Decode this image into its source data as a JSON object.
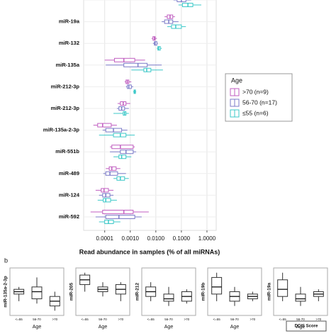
{
  "chart_data": [
    {
      "type": "hbox",
      "x_label": "Read abundance in samples (% of all miRNAs)",
      "categories": [
        null,
        "miR-19a",
        "miR-132",
        "miR-135a",
        "miR-212-3p",
        "miR-212-3p",
        "miR-135a-2-3p",
        "miR-551b",
        "miR-489",
        "miR-124",
        "miR-592"
      ],
      "log_x": true,
      "grid": true,
      "xlim": [
        1.5e-05,
        2.3
      ],
      "xticks": [
        {
          "value": 0.0001,
          "label": "0.0001"
        },
        {
          "value": 0.001,
          "label": "0.0010"
        },
        {
          "value": 0.01,
          "label": "0.0100"
        },
        {
          "value": 0.1,
          "label": "0.1000"
        },
        {
          "value": 1,
          "label": "1.0000"
        }
      ],
      "legend_title": "Age",
      "legend": "right",
      "series": [
        {
          "name": ">70 (n=9)",
          "color": "#c05ec0",
          "values": [
            [
              0.036,
              0.06,
              0.077,
              0.1,
              0.15
            ],
            [
              0.022,
              0.028,
              0.036,
              0.046,
              0.056
            ],
            [
              0.0068,
              0.0077,
              0.0088,
              0.0094,
              0.011
            ],
            [
              0.0001,
              0.00024,
              0.00056,
              0.0015,
              0.0038
            ],
            [
              0.0006,
              0.00068,
              0.00077,
              0.00088,
              0.0011
            ],
            [
              0.00032,
              0.00041,
              0.00053,
              0.00068,
              0.001
            ],
            [
              3.6e-05,
              5.3e-05,
              8.3e-05,
              0.00018,
              0.0003
            ],
            [
              0.00016,
              0.00019,
              0.00041,
              0.0013,
              0.0015
            ],
            [
              0.00011,
              0.00015,
              0.00019,
              0.00028,
              0.00041
            ],
            [
              4.4e-05,
              7.3e-05,
              9.4e-05,
              0.00014,
              0.00022
            ],
            [
              2.8e-05,
              8.3e-05,
              0.00056,
              0.0013,
              0.0053
            ]
          ]
        },
        {
          "name": "56-70 (n=17)",
          "color": "#7b7bc8",
          "values": [
            [
              0.049,
              0.068,
              0.1,
              0.15,
              0.24
            ],
            [
              0.017,
              0.022,
              0.032,
              0.046,
              0.077
            ],
            [
              0.0077,
              0.0088,
              0.0094,
              0.011,
              0.012
            ],
            [
              0.00011,
              0.00056,
              0.002,
              0.0046,
              0.017
            ],
            [
              0.00068,
              0.00077,
              0.00088,
              0.0011,
              0.0013
            ],
            [
              0.0003,
              0.00036,
              0.00046,
              0.0006,
              0.00088
            ],
            [
              8.3e-05,
              0.00011,
              0.00022,
              0.00046,
              0.00077
            ],
            [
              0.00016,
              0.00041,
              0.00068,
              0.0013,
              0.0017
            ],
            [
              8.8e-05,
              0.00011,
              0.00016,
              0.00032,
              0.00068
            ],
            [
              6e-05,
              8.3e-05,
              0.00011,
              0.00016,
              0.00022
            ],
            [
              4.4e-05,
              0.00011,
              0.00036,
              0.0015,
              0.0028
            ]
          ]
        },
        {
          "name": "≤55 (n=6)",
          "color": "#3cc8c8",
          "values": [
            [
              0.077,
              0.11,
              0.18,
              0.28,
              0.6
            ],
            [
              0.028,
              0.041,
              0.06,
              0.1,
              0.15
            ],
            [
              0.011,
              0.012,
              0.013,
              0.015,
              0.017
            ],
            [
              0.0011,
              0.0034,
              0.0044,
              0.0064,
              0.019
            ],
            [
              0.0013,
              0.0014,
              0.0015,
              0.0016,
              0.0017
            ],
            [
              0.00022,
              0.00053,
              0.0006,
              0.00068,
              0.00088
            ],
            [
              6e-05,
              0.00022,
              0.00041,
              0.00068,
              0.0015
            ],
            [
              0.00022,
              0.00036,
              0.00046,
              0.00068,
              0.0011
            ],
            [
              0.00022,
              0.0003,
              0.00041,
              0.0006,
              0.00088
            ],
            [
              5.3e-05,
              8.8e-05,
              0.00011,
              0.00017,
              0.0003
            ],
            [
              6e-05,
              0.0001,
              0.00014,
              0.00022,
              0.00041
            ]
          ]
        }
      ]
    },
    {
      "type": "box",
      "y_label": "miR-135a-2-3p",
      "x_label": "Age",
      "categories": [
        "<=55",
        "56-70",
        ">70"
      ],
      "ylim": [
        0,
        10
      ],
      "values": [
        [
          3,
          4.5,
          5,
          5.5,
          6
        ],
        [
          2.5,
          3.5,
          5,
          6,
          8
        ],
        [
          1,
          2,
          3,
          4,
          5
        ]
      ]
    },
    {
      "type": "box",
      "y_label": "miR-205",
      "x_label": "Age",
      "categories": [
        "<=55",
        "56-70",
        ">70"
      ],
      "ylim": [
        0,
        10
      ],
      "values": [
        [
          5,
          6.5,
          7.5,
          8.5,
          9
        ],
        [
          4,
          5,
          5.5,
          6,
          7
        ],
        [
          3,
          4.5,
          5.5,
          6.5,
          7
        ]
      ]
    },
    {
      "type": "box",
      "y_label": "miR-212",
      "x_label": "Age",
      "categories": [
        "<=55",
        "56-70",
        ">70"
      ],
      "ylim": [
        0,
        10
      ],
      "values": [
        [
          3,
          4,
          5,
          6,
          7
        ],
        [
          2,
          3,
          3.5,
          4.5,
          6
        ],
        [
          2.5,
          3,
          4,
          5,
          5.5
        ]
      ]
    },
    {
      "type": "box",
      "y_label": "miR-19b",
      "x_label": "Age",
      "categories": [
        "<=55",
        "56-70",
        ">70"
      ],
      "ylim": [
        0,
        10
      ],
      "values": [
        [
          3,
          4.5,
          6,
          8,
          9
        ],
        [
          2,
          3,
          4,
          5,
          6
        ],
        [
          3,
          3.5,
          4,
          4.5,
          5
        ]
      ]
    },
    {
      "type": "box",
      "y_label": "miR-19a",
      "x_label": "Age",
      "categories": [
        "<=55",
        "56-70",
        ">70"
      ],
      "ylim": [
        0,
        10
      ],
      "values": [
        [
          3,
          4,
          5.5,
          7.5,
          9
        ],
        [
          2,
          3,
          3.5,
          4.5,
          6
        ],
        [
          3,
          4,
          4.5,
          5,
          5.5
        ]
      ]
    }
  ],
  "panel_letter": "b",
  "footer_label": "DCIS Score"
}
